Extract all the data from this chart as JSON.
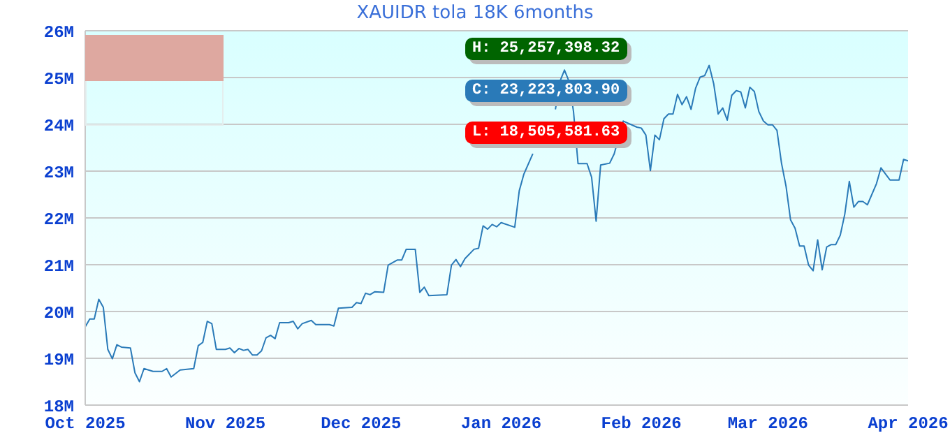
{
  "chart_data": {
    "type": "line",
    "title": "XAUIDR tola 18K 6months",
    "x": [
      "2025-10-01",
      "2025-10-02",
      "2025-10-03",
      "2025-10-04",
      "2025-10-05",
      "2025-10-06",
      "2025-10-07",
      "2025-10-08",
      "2025-10-09",
      "2025-10-11",
      "2025-10-12",
      "2025-10-13",
      "2025-10-14",
      "2025-10-16",
      "2025-10-18",
      "2025-10-19",
      "2025-10-20",
      "2025-10-22",
      "2025-10-25",
      "2025-10-26",
      "2025-10-27",
      "2025-10-28",
      "2025-10-29",
      "2025-10-30",
      "2025-11-01",
      "2025-11-02",
      "2025-11-03",
      "2025-11-04",
      "2025-11-05",
      "2025-11-06",
      "2025-11-07",
      "2025-11-08",
      "2025-11-09",
      "2025-11-10",
      "2025-11-11",
      "2025-11-12",
      "2025-11-13",
      "2025-11-15",
      "2025-11-16",
      "2025-11-17",
      "2025-11-18",
      "2025-11-20",
      "2025-11-21",
      "2025-11-24",
      "2025-11-25",
      "2025-11-26",
      "2025-11-29",
      "2025-11-30",
      "2025-12-01",
      "2025-12-02",
      "2025-12-03",
      "2025-12-04",
      "2025-12-06",
      "2025-12-07",
      "2025-12-09",
      "2025-12-10",
      "2025-12-11",
      "2025-12-13",
      "2025-12-14",
      "2025-12-15",
      "2025-12-16",
      "2025-12-20",
      "2025-12-21",
      "2025-12-22",
      "2025-12-23",
      "2025-12-24",
      "2025-12-26",
      "2025-12-27",
      "2025-12-28",
      "2025-12-29",
      "2025-12-30",
      "2025-12-31",
      "2026-01-01",
      "2026-01-04",
      "2026-01-05",
      "2026-01-06",
      "2026-01-08",
      "2026-01-09",
      "2026-01-11",
      "2026-01-13",
      "2026-01-14",
      "2026-01-15",
      "2026-01-16",
      "2026-01-17",
      "2026-01-18",
      "2026-01-20",
      "2026-01-21",
      "2026-01-22",
      "2026-01-23",
      "2026-01-25",
      "2026-01-26",
      "2026-01-28",
      "2026-01-31",
      "2026-02-01",
      "2026-02-02",
      "2026-02-03",
      "2026-02-04",
      "2026-02-05",
      "2026-02-06",
      "2026-02-07",
      "2026-02-08",
      "2026-02-09",
      "2026-02-10",
      "2026-02-11",
      "2026-02-12",
      "2026-02-13",
      "2026-02-14",
      "2026-02-15",
      "2026-02-16",
      "2026-02-17",
      "2026-02-18",
      "2026-02-19",
      "2026-02-20",
      "2026-02-21",
      "2026-02-22",
      "2026-02-23",
      "2026-02-24",
      "2026-02-25",
      "2026-02-26",
      "2026-02-27",
      "2026-02-28",
      "2026-03-01",
      "2026-03-02",
      "2026-03-03",
      "2026-03-04",
      "2026-03-05",
      "2026-03-06",
      "2026-03-07",
      "2026-03-08",
      "2026-03-09",
      "2026-03-10",
      "2026-03-11",
      "2026-03-12",
      "2026-03-13",
      "2026-03-14",
      "2026-03-15",
      "2026-03-16",
      "2026-03-17",
      "2026-03-18",
      "2026-03-19",
      "2026-03-20",
      "2026-03-21",
      "2026-03-22",
      "2026-03-23",
      "2026-03-25",
      "2026-03-26",
      "2026-03-28",
      "2026-03-30",
      "2026-03-31",
      "2026-04-01"
    ],
    "series": [
      {
        "color": "#2a7ab8",
        "values": [
          19.67,
          19.84,
          19.84,
          20.26,
          20.09,
          19.19,
          18.99,
          19.29,
          19.24,
          19.22,
          18.69,
          18.5,
          18.78,
          18.72,
          18.72,
          18.78,
          18.6,
          18.75,
          18.78,
          19.27,
          19.34,
          19.79,
          19.74,
          19.19,
          19.19,
          19.22,
          19.12,
          19.21,
          19.17,
          19.19,
          19.07,
          19.07,
          19.16,
          19.44,
          19.49,
          19.42,
          19.76,
          19.76,
          19.79,
          19.63,
          19.74,
          19.81,
          19.72,
          19.72,
          19.69,
          20.07,
          20.09,
          20.19,
          20.17,
          20.39,
          20.36,
          20.42,
          20.41,
          20.99,
          21.1,
          21.1,
          21.33,
          21.33,
          20.41,
          20.52,
          20.34,
          20.36,
          20.99,
          21.11,
          20.96,
          21.13,
          21.33,
          21.35,
          21.83,
          21.76,
          21.86,
          21.81,
          21.9,
          21.8,
          22.58,
          22.93,
          23.37,
          null,
          null,
          24.32,
          24.92,
          25.16,
          24.92,
          24.27,
          23.16,
          23.16,
          22.87,
          21.93,
          23.13,
          23.17,
          23.37,
          24.07,
          23.94,
          23.92,
          23.77,
          23.01,
          23.77,
          23.67,
          24.12,
          24.22,
          24.22,
          24.64,
          24.42,
          24.59,
          24.32,
          24.77,
          25.01,
          25.04,
          25.26,
          24.87,
          24.22,
          24.35,
          24.09,
          24.62,
          24.72,
          24.69,
          24.35,
          24.79,
          24.7,
          24.27,
          24.07,
          23.99,
          23.99,
          23.87,
          23.17,
          22.68,
          21.96,
          21.78,
          21.4,
          21.4,
          20.99,
          20.87,
          21.53,
          20.89,
          21.38,
          21.43,
          21.43,
          21.63,
          22.08,
          22.78,
          22.23,
          22.35,
          22.35,
          22.28,
          22.73,
          23.07,
          22.81,
          22.81,
          23.25,
          23.22
        ]
      }
    ],
    "xlim": [
      "2025-10-01",
      "2026-04-01"
    ],
    "xticks": [
      {
        "value": "2025-10-01",
        "label": "Oct 2025"
      },
      {
        "value": "2025-11-01",
        "label": "Nov 2025"
      },
      {
        "value": "2025-12-01",
        "label": "Dec 2025"
      },
      {
        "value": "2026-01-01",
        "label": "Jan 2026"
      },
      {
        "value": "2026-02-01",
        "label": "Feb 2026"
      },
      {
        "value": "2026-03-01",
        "label": "Mar 2026"
      },
      {
        "value": "2026-04-01",
        "label": "Apr 2026"
      }
    ],
    "ylim": [
      18,
      26
    ],
    "yticks": [
      {
        "value": 18,
        "label": "18M"
      },
      {
        "value": 19,
        "label": "19M"
      },
      {
        "value": 20,
        "label": "20M"
      },
      {
        "value": 21,
        "label": "21M"
      },
      {
        "value": 22,
        "label": "22M"
      },
      {
        "value": 23,
        "label": "23M"
      },
      {
        "value": 24,
        "label": "24M"
      },
      {
        "value": 25,
        "label": "25M"
      },
      {
        "value": 26,
        "label": "26M"
      }
    ],
    "grid": "y",
    "annotations": [
      "H: 25,257,398.32",
      "C: 23,223,803.90",
      "L: 18,505,581.63"
    ]
  }
}
